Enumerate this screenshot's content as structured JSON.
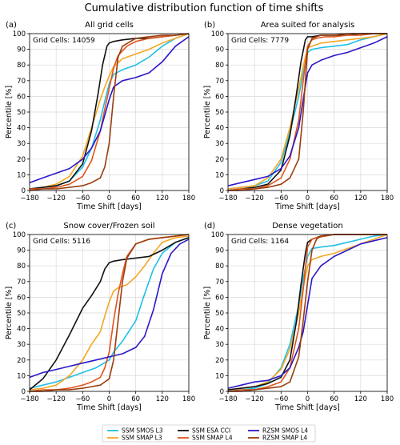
{
  "figure": {
    "title": "Cumulative distribution function of time shifts"
  },
  "colors": {
    "ssm_smos_l3": "#20c0e8",
    "ssm_smap_l3": "#f5a623",
    "ssm_esa_cci": "#111111",
    "ssm_smap_l4": "#e0541b",
    "rzsm_smos_l4": "#2b18c9",
    "rzsm_smap_l4": "#9a3d0c"
  },
  "legend": {
    "placement": "bottom-center",
    "entries": [
      {
        "key": "ssm_smos_l3",
        "label": "SSM SMOS L3"
      },
      {
        "key": "ssm_esa_cci",
        "label": "SSM ESA CCI"
      },
      {
        "key": "rzsm_smos_l4",
        "label": "RZSM SMOS L4"
      },
      {
        "key": "ssm_smap_l3",
        "label": "SSM SMAP L3"
      },
      {
        "key": "ssm_smap_l4",
        "label": "SSM SMAP L4"
      },
      {
        "key": "rzsm_smap_l4",
        "label": "RZSM SMAP L4"
      }
    ]
  },
  "chart_data": [
    {
      "type": "line",
      "panel_label": "(a)",
      "title": "All grid cells",
      "grid_cells_text": "Grid Cells: 14059",
      "xlabel": "Time Shift [days]",
      "ylabel": "Percentile [%]",
      "xlim": [
        -180,
        180
      ],
      "ylim": [
        0,
        100
      ],
      "xticks": [
        -180,
        -120,
        -60,
        0,
        60,
        120,
        180
      ],
      "yticks": [
        0,
        10,
        20,
        30,
        40,
        50,
        60,
        70,
        80,
        90,
        100
      ],
      "grid": true,
      "series": [
        {
          "key": "ssm_smos_l3",
          "x": [
            -180,
            -150,
            -120,
            -90,
            -60,
            -40,
            -20,
            -10,
            0,
            10,
            30,
            60,
            90,
            120,
            150,
            180
          ],
          "y": [
            1,
            2,
            3,
            6,
            15,
            27,
            45,
            57,
            68,
            74,
            77,
            80,
            85,
            92,
            97,
            100
          ]
        },
        {
          "key": "ssm_smap_l3",
          "x": [
            -180,
            -150,
            -120,
            -90,
            -60,
            -40,
            -20,
            -10,
            0,
            10,
            30,
            60,
            90,
            120,
            150,
            180
          ],
          "y": [
            1,
            2,
            4,
            9,
            22,
            40,
            58,
            66,
            73,
            79,
            84,
            87,
            90,
            94,
            97,
            100
          ]
        },
        {
          "key": "ssm_esa_cci",
          "x": [
            -180,
            -150,
            -120,
            -90,
            -60,
            -40,
            -25,
            -15,
            -5,
            0,
            10,
            30,
            60,
            90,
            120,
            150,
            180
          ],
          "y": [
            1,
            2,
            3,
            6,
            17,
            38,
            62,
            80,
            92,
            94,
            95,
            96,
            97,
            97,
            98,
            99,
            100
          ]
        },
        {
          "key": "ssm_smap_l4",
          "x": [
            -180,
            -150,
            -120,
            -90,
            -60,
            -40,
            -20,
            -10,
            0,
            10,
            20,
            40,
            60,
            90,
            120,
            150,
            180
          ],
          "y": [
            1,
            1,
            2,
            4,
            9,
            19,
            38,
            52,
            65,
            78,
            86,
            92,
            95,
            97,
            98,
            99,
            100
          ]
        },
        {
          "key": "rzsm_smos_l4",
          "x": [
            -180,
            -150,
            -120,
            -90,
            -60,
            -40,
            -20,
            -10,
            0,
            10,
            30,
            60,
            90,
            120,
            150,
            180
          ],
          "y": [
            5,
            8,
            11,
            14,
            20,
            27,
            38,
            48,
            58,
            66,
            70,
            72,
            75,
            82,
            92,
            98
          ]
        },
        {
          "key": "rzsm_smap_l4",
          "x": [
            -180,
            -150,
            -120,
            -90,
            -60,
            -40,
            -20,
            -10,
            0,
            10,
            20,
            30,
            60,
            90,
            120,
            150,
            180
          ],
          "y": [
            0,
            1,
            1,
            2,
            3,
            5,
            8,
            15,
            30,
            60,
            85,
            92,
            97,
            98,
            99,
            99,
            100
          ]
        }
      ]
    },
    {
      "type": "line",
      "panel_label": "(b)",
      "title": "Area suited for analysis",
      "grid_cells_text": "Grid Cells: 7779",
      "xlabel": "Time Shift [days]",
      "ylabel": "Percentile [%]",
      "xlim": [
        -180,
        180
      ],
      "ylim": [
        0,
        100
      ],
      "xticks": [
        -180,
        -120,
        -60,
        0,
        60,
        120,
        180
      ],
      "yticks": [
        0,
        10,
        20,
        30,
        40,
        50,
        60,
        70,
        80,
        90,
        100
      ],
      "grid": true,
      "series": [
        {
          "key": "ssm_smos_l3",
          "x": [
            -180,
            -150,
            -120,
            -90,
            -60,
            -40,
            -20,
            -10,
            0,
            10,
            30,
            60,
            90,
            120,
            150,
            180
          ],
          "y": [
            1,
            2,
            3,
            6,
            18,
            37,
            60,
            75,
            88,
            90,
            91,
            92,
            93,
            96,
            98,
            100
          ]
        },
        {
          "key": "ssm_smap_l3",
          "x": [
            -180,
            -150,
            -120,
            -90,
            -60,
            -40,
            -20,
            -10,
            0,
            10,
            30,
            60,
            90,
            120,
            150,
            180
          ],
          "y": [
            1,
            2,
            3,
            8,
            20,
            40,
            65,
            79,
            91,
            92,
            94,
            95,
            96,
            97,
            98,
            100
          ]
        },
        {
          "key": "ssm_esa_cci",
          "x": [
            -180,
            -150,
            -120,
            -90,
            -60,
            -40,
            -25,
            -15,
            -5,
            0,
            10,
            30,
            60,
            90,
            120,
            150,
            180
          ],
          "y": [
            0,
            1,
            2,
            4,
            13,
            35,
            62,
            82,
            96,
            98,
            98,
            99,
            99,
            99,
            100,
            100,
            100
          ]
        },
        {
          "key": "ssm_smap_l4",
          "x": [
            -180,
            -150,
            -120,
            -90,
            -60,
            -40,
            -20,
            -10,
            0,
            10,
            20,
            40,
            60,
            90,
            120,
            150,
            180
          ],
          "y": [
            0,
            1,
            1,
            3,
            8,
            20,
            45,
            70,
            92,
            96,
            97,
            98,
            98,
            99,
            99,
            100,
            100
          ]
        },
        {
          "key": "rzsm_smos_l4",
          "x": [
            -180,
            -150,
            -120,
            -90,
            -60,
            -40,
            -20,
            -10,
            0,
            10,
            30,
            60,
            90,
            120,
            150,
            180
          ],
          "y": [
            3,
            5,
            7,
            9,
            14,
            22,
            40,
            58,
            75,
            80,
            83,
            86,
            88,
            91,
            94,
            98
          ]
        },
        {
          "key": "rzsm_smap_l4",
          "x": [
            -180,
            -150,
            -120,
            -90,
            -60,
            -40,
            -20,
            -10,
            0,
            10,
            20,
            30,
            60,
            90,
            120,
            150,
            180
          ],
          "y": [
            0,
            0,
            1,
            2,
            4,
            8,
            20,
            50,
            90,
            97,
            98,
            99,
            99,
            100,
            100,
            100,
            100
          ]
        }
      ]
    },
    {
      "type": "line",
      "panel_label": "(c)",
      "title": "Snow cover/Frozen soil",
      "grid_cells_text": "Grid Cells: 5116",
      "xlabel": "Time Shift [days]",
      "ylabel": "Percentile [%]",
      "xlim": [
        -180,
        180
      ],
      "ylim": [
        0,
        100
      ],
      "xticks": [
        -180,
        -120,
        -60,
        0,
        60,
        120,
        180
      ],
      "yticks": [
        0,
        10,
        20,
        30,
        40,
        50,
        60,
        70,
        80,
        90,
        100
      ],
      "grid": true,
      "series": [
        {
          "key": "ssm_smos_l3",
          "x": [
            -180,
            -150,
            -120,
            -90,
            -60,
            -30,
            0,
            10,
            30,
            60,
            80,
            100,
            120,
            150,
            180
          ],
          "y": [
            2,
            4,
            6,
            9,
            12,
            15,
            20,
            25,
            32,
            45,
            62,
            78,
            88,
            95,
            98
          ]
        },
        {
          "key": "ssm_smap_l3",
          "x": [
            -180,
            -150,
            -120,
            -90,
            -60,
            -40,
            -20,
            -10,
            0,
            10,
            20,
            40,
            60,
            80,
            100,
            120,
            150,
            180
          ],
          "y": [
            1,
            2,
            4,
            10,
            20,
            30,
            38,
            48,
            57,
            64,
            66,
            68,
            73,
            80,
            88,
            95,
            98,
            99
          ]
        },
        {
          "key": "ssm_esa_cci",
          "x": [
            -180,
            -150,
            -120,
            -90,
            -60,
            -40,
            -20,
            -10,
            0,
            10,
            30,
            60,
            90,
            120,
            150,
            180
          ],
          "y": [
            1,
            8,
            20,
            36,
            53,
            61,
            70,
            78,
            82,
            83,
            84,
            85,
            86,
            90,
            95,
            98
          ]
        },
        {
          "key": "ssm_smap_l4",
          "x": [
            -180,
            -150,
            -120,
            -90,
            -60,
            -40,
            -20,
            -10,
            0,
            10,
            20,
            30,
            40,
            60,
            90,
            120,
            150,
            180
          ],
          "y": [
            0,
            1,
            1,
            2,
            4,
            6,
            9,
            15,
            25,
            45,
            62,
            75,
            86,
            94,
            97,
            98,
            99,
            100
          ]
        },
        {
          "key": "rzsm_smos_l4",
          "x": [
            -180,
            -150,
            -120,
            -90,
            -60,
            -30,
            0,
            30,
            60,
            80,
            100,
            120,
            140,
            160,
            180
          ],
          "y": [
            9,
            12,
            14,
            16,
            18,
            20,
            22,
            24,
            28,
            35,
            52,
            75,
            88,
            94,
            97
          ]
        },
        {
          "key": "rzsm_smap_l4",
          "x": [
            -180,
            -150,
            -120,
            -90,
            -60,
            -40,
            -20,
            0,
            10,
            20,
            30,
            40,
            60,
            90,
            120,
            150,
            180
          ],
          "y": [
            0,
            0,
            1,
            1,
            2,
            3,
            4,
            8,
            20,
            45,
            70,
            85,
            94,
            97,
            98,
            99,
            100
          ]
        }
      ]
    },
    {
      "type": "line",
      "panel_label": "(d)",
      "title": "Dense vegetation",
      "grid_cells_text": "Grid Cells: 1164",
      "xlabel": "Time Shift [days]",
      "ylabel": "Percentile [%]",
      "xlim": [
        -180,
        180
      ],
      "ylim": [
        0,
        100
      ],
      "xticks": [
        -180,
        -120,
        -60,
        0,
        60,
        120,
        180
      ],
      "yticks": [
        0,
        10,
        20,
        30,
        40,
        50,
        60,
        70,
        80,
        90,
        100
      ],
      "grid": true,
      "series": [
        {
          "key": "ssm_smos_l3",
          "x": [
            -180,
            -150,
            -120,
            -90,
            -60,
            -40,
            -20,
            -10,
            0,
            10,
            30,
            60,
            90,
            120,
            150,
            180
          ],
          "y": [
            0,
            1,
            2,
            5,
            15,
            30,
            55,
            72,
            86,
            91,
            92,
            93,
            95,
            97,
            99,
            100
          ]
        },
        {
          "key": "ssm_smap_l3",
          "x": [
            -180,
            -150,
            -120,
            -90,
            -60,
            -40,
            -20,
            -10,
            0,
            10,
            30,
            60,
            90,
            120,
            150,
            180
          ],
          "y": [
            1,
            2,
            3,
            6,
            14,
            27,
            50,
            66,
            80,
            84,
            86,
            88,
            91,
            94,
            97,
            100
          ]
        },
        {
          "key": "ssm_esa_cci",
          "x": [
            -180,
            -150,
            -120,
            -90,
            -60,
            -40,
            -25,
            -15,
            -5,
            0,
            10,
            30,
            60,
            90,
            120,
            150,
            180
          ],
          "y": [
            1,
            2,
            3,
            5,
            9,
            20,
            45,
            68,
            88,
            95,
            97,
            99,
            100,
            100,
            100,
            100,
            100
          ]
        },
        {
          "key": "ssm_smap_l4",
          "x": [
            -180,
            -150,
            -120,
            -90,
            -60,
            -40,
            -20,
            -10,
            0,
            10,
            20,
            40,
            60,
            90,
            120,
            150,
            180
          ],
          "y": [
            0,
            1,
            1,
            3,
            6,
            15,
            40,
            65,
            92,
            97,
            98,
            99,
            100,
            100,
            100,
            100,
            100
          ]
        },
        {
          "key": "rzsm_smos_l4",
          "x": [
            -180,
            -150,
            -120,
            -90,
            -60,
            -40,
            -20,
            -10,
            0,
            10,
            30,
            60,
            90,
            120,
            150,
            180
          ],
          "y": [
            2,
            4,
            6,
            7,
            10,
            15,
            28,
            38,
            55,
            72,
            80,
            86,
            90,
            94,
            96,
            98
          ]
        },
        {
          "key": "rzsm_smap_l4",
          "x": [
            -180,
            -150,
            -120,
            -90,
            -60,
            -40,
            -20,
            -10,
            0,
            10,
            20,
            30,
            60,
            90,
            120,
            150,
            180
          ],
          "y": [
            0,
            0,
            1,
            2,
            3,
            6,
            22,
            45,
            70,
            90,
            97,
            99,
            100,
            100,
            100,
            100,
            100
          ]
        }
      ]
    }
  ]
}
